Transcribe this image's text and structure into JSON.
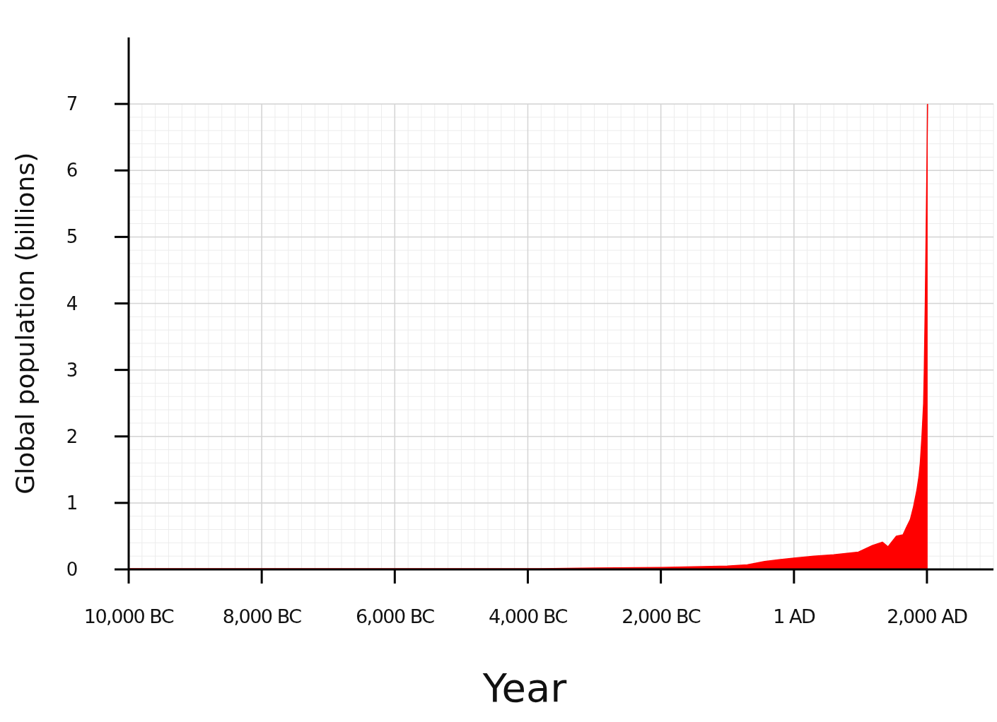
{
  "chart_data": {
    "type": "area",
    "xlabel": "Year",
    "ylabel": "Global population (billions)",
    "x": [
      -10000,
      -8000,
      -6000,
      -4000,
      -3000,
      -2000,
      -1500,
      -1000,
      -700,
      -440,
      -200,
      1,
      300,
      600,
      970,
      1180,
      1330,
      1415,
      1540,
      1640,
      1700,
      1750,
      1800,
      1850,
      1880,
      1900,
      1925,
      1950,
      1960,
      1975,
      1987,
      1999,
      2010
    ],
    "series": [
      {
        "color": "#ff0000",
        "values": [
          0.01,
          0.01,
          0.01,
          0.01,
          0.02,
          0.03,
          0.04,
          0.05,
          0.07,
          0.12,
          0.15,
          0.17,
          0.2,
          0.22,
          0.26,
          0.36,
          0.41,
          0.34,
          0.5,
          0.52,
          0.65,
          0.75,
          0.95,
          1.2,
          1.4,
          1.6,
          2.0,
          2.5,
          3.0,
          4.0,
          5.0,
          6.0,
          7.0
        ]
      }
    ],
    "xlim": [
      -10000,
      3000
    ],
    "ylim": [
      0,
      8
    ],
    "xticks": [
      {
        "value": -10000,
        "label": "10,000 BC"
      },
      {
        "value": -8000,
        "label": "8,000 BC"
      },
      {
        "value": -6000,
        "label": "6,000 BC"
      },
      {
        "value": -4000,
        "label": "4,000 BC"
      },
      {
        "value": -2000,
        "label": "2,000 BC"
      },
      {
        "value": 1,
        "label": "1 AD"
      },
      {
        "value": 2000,
        "label": "2,000 AD"
      }
    ],
    "yticks": [
      0,
      1,
      2,
      3,
      4,
      5,
      6,
      7
    ],
    "grid": true
  }
}
